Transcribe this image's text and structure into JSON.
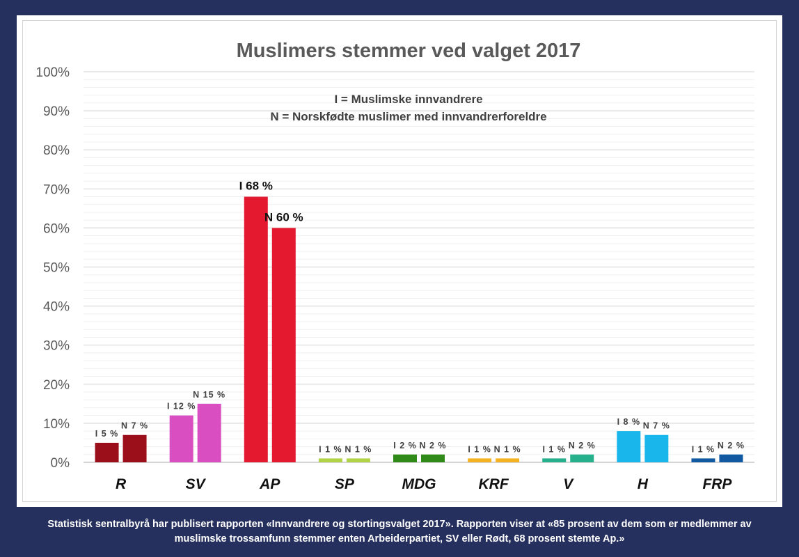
{
  "caption": {
    "line1": "Statistisk sentralbyrå har publisert rapporten «Innvandrere og stortingsvalget 2017». Rapporten viser at «85 prosent av dem som er medlemmer av",
    "line2": "muslimske trossamfunn stemmer enten Arbeiderpartiet, SV eller Rødt, 68 prosent stemte Ap.»"
  },
  "chart_data": {
    "type": "bar",
    "title": "Muslimers stemmer ved valget 2017",
    "annotations": [
      "I = Muslimske innvandrere",
      "N = Norskfødte muslimer med innvandrerforeldre"
    ],
    "xlabel": "",
    "ylabel": "",
    "ylim": [
      0,
      100
    ],
    "yticks": [
      "0%",
      "10%",
      "20%",
      "30%",
      "40%",
      "50%",
      "60%",
      "70%",
      "80%",
      "90%",
      "100%"
    ],
    "grid": true,
    "categories": [
      "R",
      "SV",
      "AP",
      "SP",
      "MDG",
      "KRF",
      "V",
      "H",
      "FRP"
    ],
    "series": [
      {
        "name": "I",
        "values": [
          5,
          12,
          68,
          1,
          2,
          1,
          1,
          8,
          1
        ],
        "labels": [
          "I 5 %",
          "I 12 %",
          "I 68 %",
          "I 1 %",
          "I 2 %",
          "I 1 %",
          "I 1 %",
          "I 8 %",
          "I 1 %"
        ]
      },
      {
        "name": "N",
        "values": [
          7,
          15,
          60,
          1,
          2,
          1,
          2,
          7,
          2
        ],
        "labels": [
          "N 7 %",
          "N 15 %",
          "N 60 %",
          "N 1 %",
          "N 2 %",
          "N 1 %",
          "N 2 %",
          "N 7 %",
          "N 2 %"
        ]
      }
    ],
    "colors": {
      "I": [
        "#9b0f1a",
        "#d94ec0",
        "#e4182e",
        "#b3d347",
        "#2f8a18",
        "#f4b323",
        "#26b08c",
        "#19b6ec",
        "#115aa2"
      ],
      "N": [
        "#9b0f1a",
        "#d94ec0",
        "#e4182e",
        "#b3d347",
        "#2f8a18",
        "#f4b323",
        "#26b08c",
        "#19b6ec",
        "#115aa2"
      ]
    }
  }
}
